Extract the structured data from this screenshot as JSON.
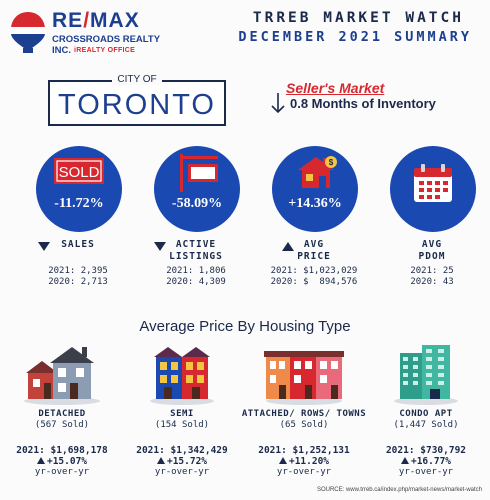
{
  "logo": {
    "brand": "RE/MAX",
    "office": "CROSSROADS REALTY INC.",
    "tagline": "iREALTY OFFICE"
  },
  "header": {
    "title": "TRREB MARKET WATCH",
    "subtitle": "DECEMBER 2021 SUMMARY"
  },
  "city": {
    "prefix": "CITY OF",
    "name": "TORONTO"
  },
  "market": {
    "status": "Seller's Market",
    "inventory": "0.8 Months of Inventory"
  },
  "stats": [
    {
      "icon": "sold-sign-icon",
      "change": "-11.72%",
      "direction": "down",
      "label": "SALES",
      "vals": "2021: 2,395\n2020: 2,713"
    },
    {
      "icon": "listing-sign-icon",
      "change": "-58.09%",
      "direction": "down",
      "label": "ACTIVE\nLISTINGS",
      "vals": "2021: 1,806\n2020: 4,309"
    },
    {
      "icon": "house-price-icon",
      "change": "+14.36%",
      "direction": "up",
      "label": "AVG\nPRICE",
      "vals": "2021: $1,023,029\n2020: $  894,576"
    },
    {
      "icon": "calendar-icon",
      "change": "",
      "direction": "none",
      "label": "AVG\nPDOM",
      "vals": "2021: 25\n2020: 43"
    }
  ],
  "section_title": "Average Price By Housing Type",
  "housing": [
    {
      "name": "DETACHED",
      "sold": "(567 Sold)",
      "price": "2021: $1,698,178",
      "change": "+15.07%",
      "yoy": "yr-over-yr"
    },
    {
      "name": "SEMI",
      "sold": "(154 Sold)",
      "price": "2021: $1,342,429",
      "change": "+15.72%",
      "yoy": "yr-over-yr"
    },
    {
      "name": "ATTACHED/ ROWS/ TOWNS",
      "sold": "(65 Sold)",
      "price": "2021: $1,252,131",
      "change": "+11.20%",
      "yoy": "yr-over-yr"
    },
    {
      "name": "CONDO APT",
      "sold": "(1,447 Sold)",
      "price": "2021: $730,792",
      "change": "+16.77%",
      "yoy": "yr-over-yr"
    }
  ],
  "source": "SOURCE:  www.trreb.ca/index.php/market-news/market-watch",
  "colors": {
    "navy": "#1b2a4a",
    "blue": "#1b49b2",
    "red": "#d7282f"
  }
}
